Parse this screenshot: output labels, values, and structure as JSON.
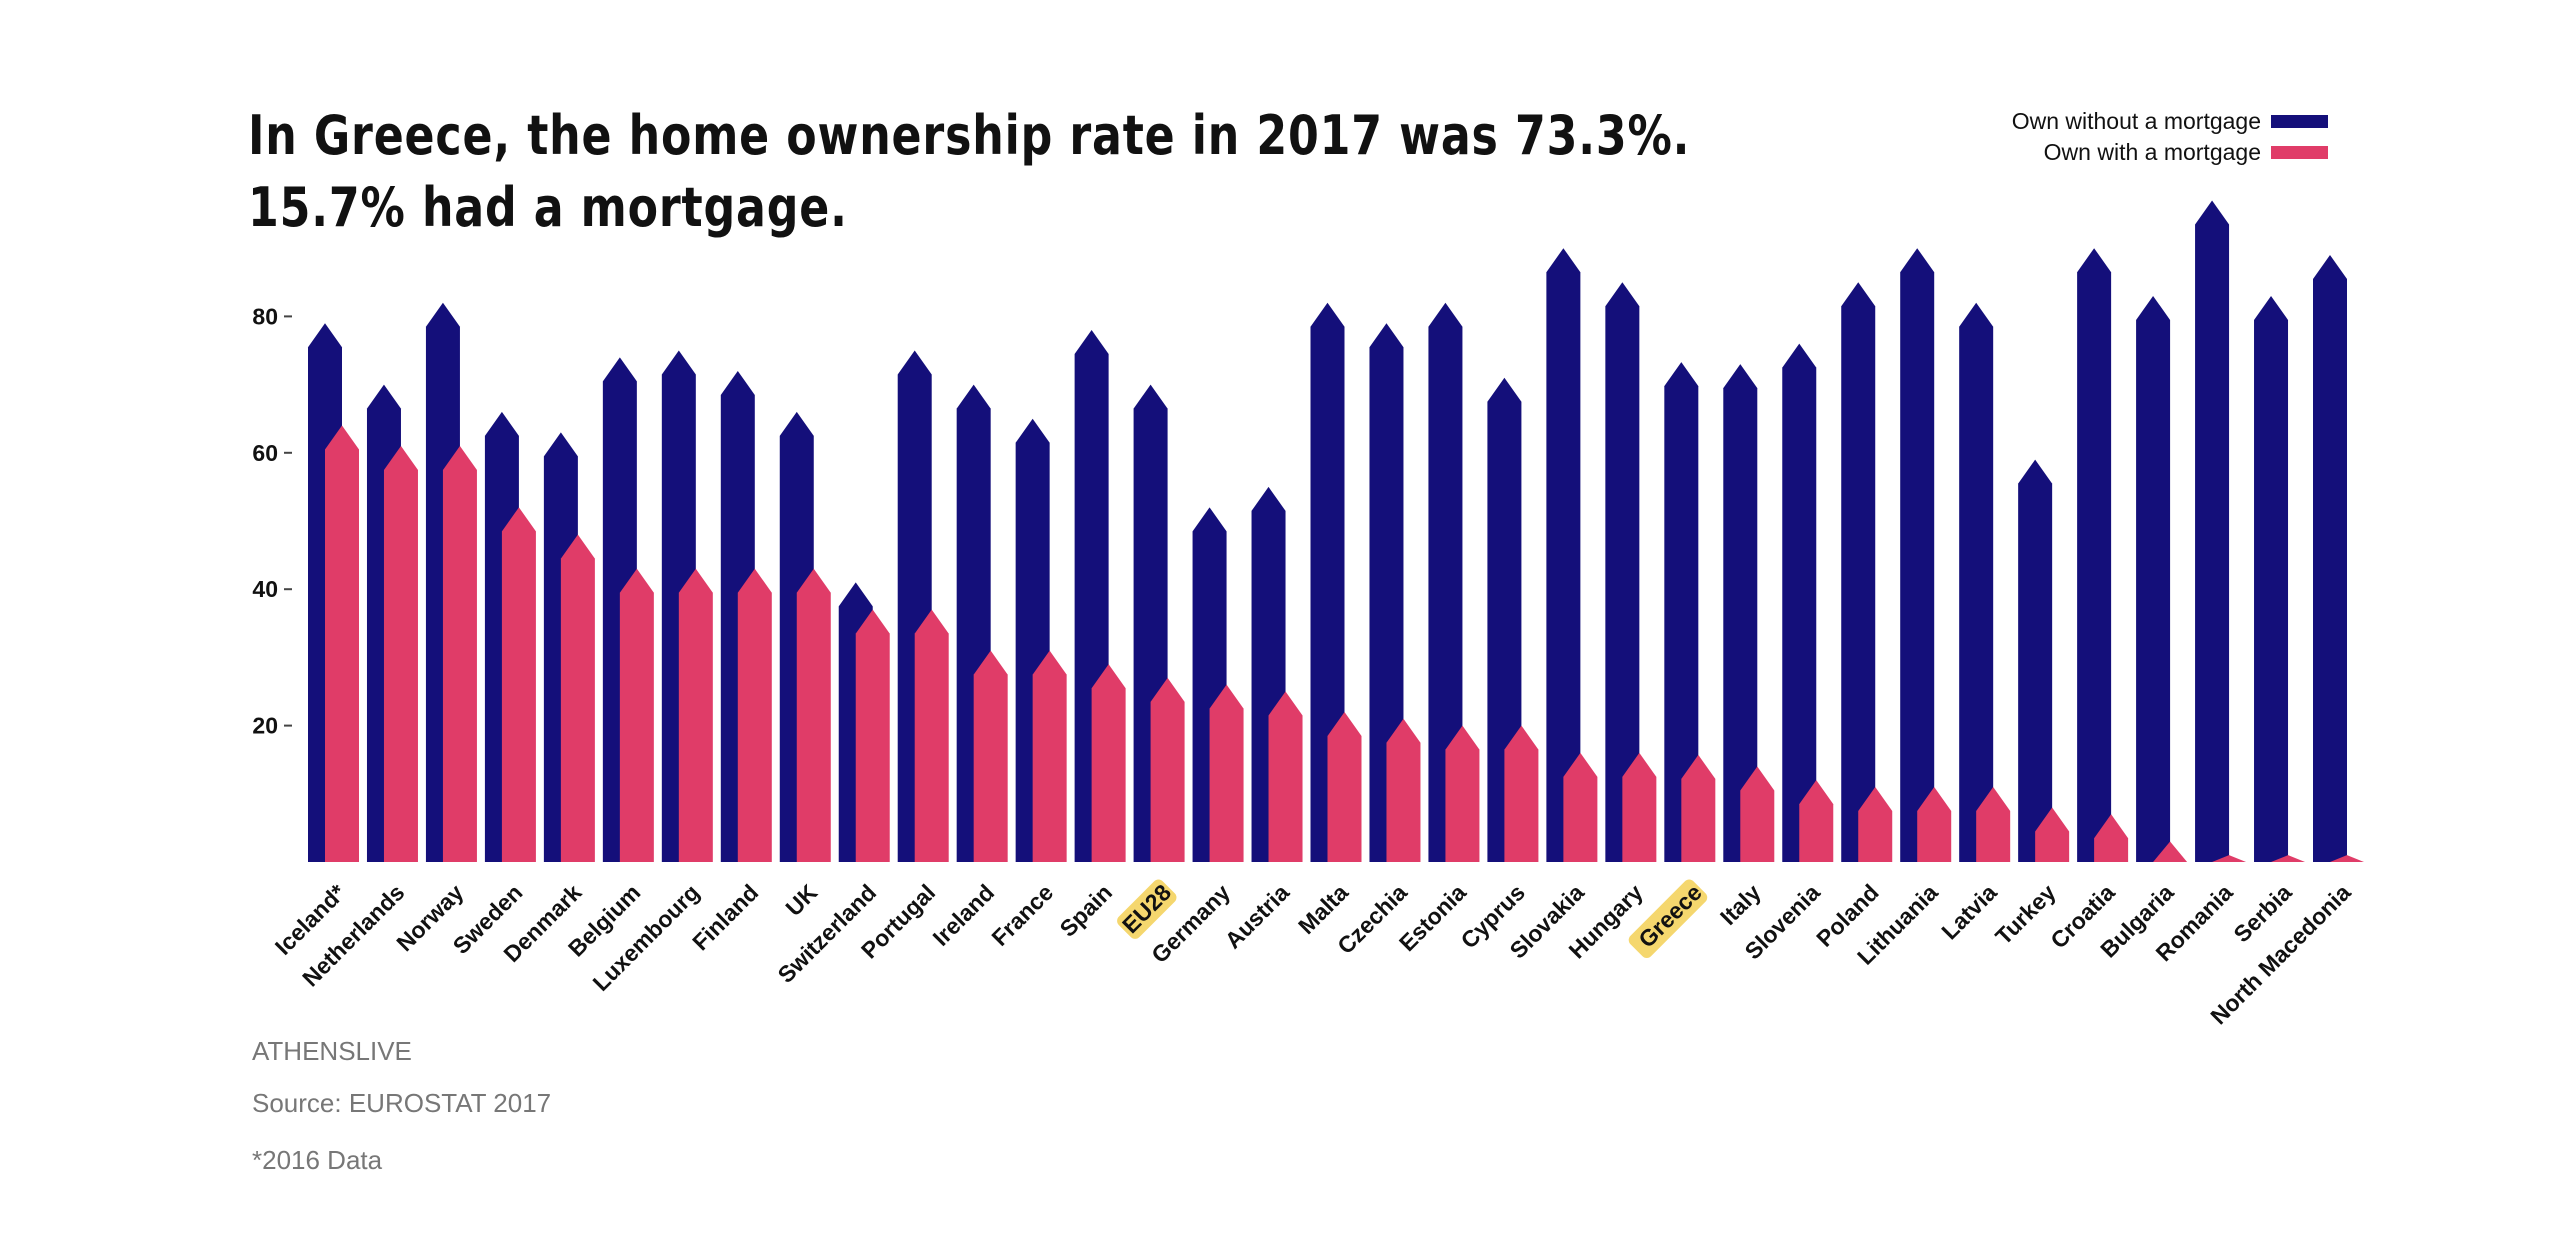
{
  "title_lines": [
    "In Greece, the home ownership rate in 2017 was 73.3%.",
    "15.7% had a mortgage."
  ],
  "legend": [
    {
      "label": "Own without a mortgage",
      "color": "#140f7a"
    },
    {
      "label": "Own with a mortgage",
      "color": "#e03c68"
    }
  ],
  "colors": {
    "without": "#140f7a",
    "with": "#e03c68",
    "highlight": "#f5d76e",
    "text": "#111111",
    "footer": "#777777"
  },
  "chart_data": {
    "type": "bar",
    "title": "In Greece, the home ownership rate in 2017 was 73.3%. 15.7% had a mortgage.",
    "categories": [
      "Iceland*",
      "Netherlands",
      "Norway",
      "Sweden",
      "Denmark",
      "Belgium",
      "Luxembourg",
      "Finland",
      "UK",
      "Switzerland",
      "Portugal",
      "Ireland",
      "France",
      "Spain",
      "EU28",
      "Germany",
      "Austria",
      "Malta",
      "Czechia",
      "Estonia",
      "Cyprus",
      "Slovakia",
      "Hungary",
      "Greece",
      "Italy",
      "Slovenia",
      "Poland",
      "Lithuania",
      "Latvia",
      "Turkey",
      "Croatia",
      "Bulgaria",
      "Romania",
      "Serbia",
      "North Macedonia"
    ],
    "highlighted": [
      "EU28",
      "Greece"
    ],
    "series": [
      {
        "name": "Own without a mortgage",
        "values": [
          79,
          70,
          82,
          66,
          63,
          74,
          75,
          72,
          66,
          41,
          75,
          70,
          65,
          78,
          70,
          52,
          55,
          82,
          79,
          82,
          71,
          90,
          85,
          73.3,
          73,
          76,
          85,
          90,
          82,
          59,
          90,
          83,
          97,
          83,
          89
        ]
      },
      {
        "name": "Own with a mortgage",
        "values": [
          64,
          61,
          61,
          52,
          48,
          43,
          43,
          43,
          43,
          37,
          37,
          31,
          31,
          29,
          27,
          26,
          25,
          22,
          21,
          20,
          20,
          16,
          16,
          15.7,
          14,
          12,
          11,
          11,
          11,
          8,
          7,
          3,
          1,
          1,
          1
        ]
      }
    ],
    "yticks": [
      20,
      40,
      60,
      80
    ],
    "ylim": [
      0,
      100
    ],
    "xlabel": "",
    "ylabel": "",
    "legend_position": "top-right",
    "grid": false
  },
  "footer": {
    "brand": "ATHENSLIVE",
    "source": "Source: EUROSTAT 2017",
    "note": "*2016 Data"
  }
}
